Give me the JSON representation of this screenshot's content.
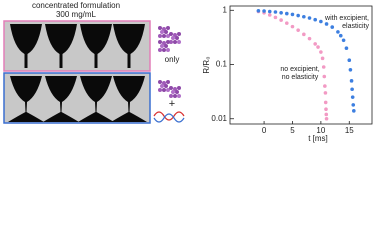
{
  "figure": {
    "title": "concentrated formulation",
    "subtitle": "300 mg/mL",
    "only_label": "only",
    "plus_label": "+"
  },
  "chart_data": {
    "type": "scatter",
    "xlabel": "t [ms]",
    "ylabel": "R/R₀",
    "log_y": true,
    "xlim": [
      -6,
      19
    ],
    "ylim": [
      0.008,
      1.2
    ],
    "xticks": [
      0,
      5,
      10,
      15
    ],
    "yticks": [
      0.01,
      0.1,
      1
    ],
    "annotations": [
      "with excipient,",
      "elasticity",
      "no excipient,",
      "no elasticity"
    ],
    "series": [
      {
        "color": "#f29ac4",
        "x": [
          -1,
          0,
          1,
          2,
          3,
          4,
          5,
          6,
          7,
          8,
          9,
          9.5,
          10,
          10.3,
          10.5,
          10.6,
          10.7,
          10.8,
          10.85,
          10.9,
          10.95,
          11
        ],
        "values": [
          0.95,
          0.9,
          0.82,
          0.74,
          0.66,
          0.58,
          0.5,
          0.43,
          0.36,
          0.3,
          0.24,
          0.21,
          0.17,
          0.13,
          0.09,
          0.06,
          0.04,
          0.03,
          0.02,
          0.015,
          0.012,
          0.01
        ]
      },
      {
        "color": "#3d7fe0",
        "x": [
          -1,
          0,
          1,
          2,
          3,
          4,
          5,
          6,
          7,
          8,
          9,
          10,
          11,
          12,
          13,
          13.5,
          14,
          14.5,
          15,
          15.2,
          15.4,
          15.5,
          15.6,
          15.7,
          15.8
        ],
        "values": [
          0.98,
          0.97,
          0.95,
          0.93,
          0.9,
          0.87,
          0.84,
          0.8,
          0.76,
          0.72,
          0.67,
          0.62,
          0.56,
          0.49,
          0.4,
          0.34,
          0.28,
          0.2,
          0.12,
          0.08,
          0.05,
          0.035,
          0.025,
          0.018,
          0.014
        ]
      }
    ]
  }
}
